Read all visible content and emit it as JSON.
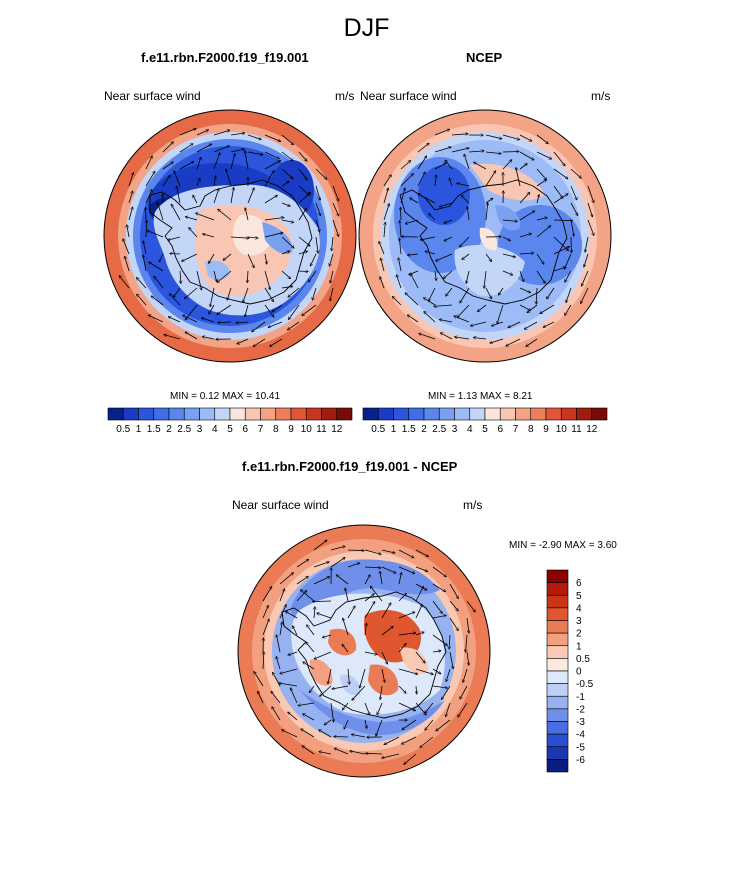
{
  "figure_title": "DJF",
  "panels": [
    {
      "title": "f.e11.rbn.F2000.f19_f19.001",
      "left_label": "Near surface wind",
      "right_label": "m/s",
      "minmax": "MIN =   0.12 MAX =   10.41",
      "colorbar_labels": [
        "0.5",
        "1",
        "1.5",
        "2",
        "2.5",
        "3",
        "4",
        "5",
        "6",
        "7",
        "8",
        "9",
        "10",
        "11",
        "12"
      ]
    },
    {
      "title": "NCEP",
      "left_label": "Near surface wind",
      "right_label": "m/s",
      "minmax": "MIN =   1.13 MAX =   8.21",
      "colorbar_labels": [
        "0.5",
        "1",
        "1.5",
        "2",
        "2.5",
        "3",
        "4",
        "5",
        "6",
        "7",
        "8",
        "9",
        "10",
        "11",
        "12"
      ]
    },
    {
      "title": "f.e11.rbn.F2000.f19_f19.001 - NCEP",
      "left_label": "Near surface wind",
      "right_label": "m/s",
      "minmax": "MIN =  -2.90 MAX =   3.60",
      "colorbar_labels": [
        "6",
        "5",
        "4",
        "3",
        "2",
        "1",
        "0.5",
        "0",
        "-0.5",
        "-1",
        "-2",
        "-3",
        "-4",
        "-5",
        "-6"
      ]
    }
  ],
  "colors": {
    "speed_scale": [
      "#08208c",
      "#1a3cc4",
      "#2a55dc",
      "#3e6ee8",
      "#5a86ee",
      "#7aa0f2",
      "#9dbbf6",
      "#c4d6f8",
      "#fbe6de",
      "#f8c6b2",
      "#f3a487",
      "#ec7e5c",
      "#e15736",
      "#c83622",
      "#a11c10",
      "#7a0a06"
    ],
    "diff_scale": [
      "#8b0000",
      "#b31a0a",
      "#cd3416",
      "#e0562f",
      "#ea7b55",
      "#f3a081",
      "#f9c9b3",
      "#fceae2",
      "#dde8fb",
      "#bcd0f7",
      "#96b2f1",
      "#6f90ea",
      "#4a6de2",
      "#2c4fd2",
      "#1a36b0",
      "#0a1c80"
    ],
    "coast": "#000000",
    "arrow": "#000000"
  },
  "map_type": "south polar stereographic",
  "vector_type": "wind arrows"
}
